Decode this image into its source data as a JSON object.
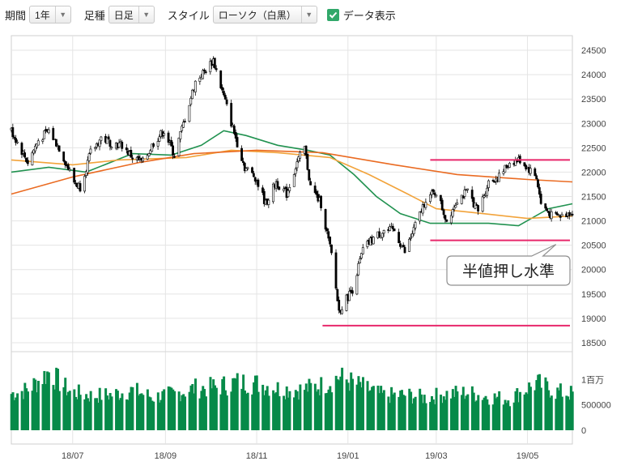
{
  "toolbar": {
    "period_label": "期間",
    "period_value": "1年",
    "type_label": "足種",
    "type_value": "日足",
    "style_label": "スタイル",
    "style_value": "ローソク（白黒）",
    "data_display_label": "データ表示",
    "data_display_checked": true
  },
  "chart_data": {
    "type": "line",
    "price_axis": {
      "ylim": [
        18350,
        24800
      ],
      "ticks": [
        18500,
        19000,
        19500,
        20000,
        20500,
        21000,
        21500,
        22000,
        22500,
        23000,
        23500,
        24000,
        24500
      ]
    },
    "volume_axis": {
      "ylim": [
        0,
        1550000
      ],
      "tick_labels": [
        "1百万",
        "500000",
        "0"
      ],
      "tick_values": [
        1000000,
        500000,
        0
      ]
    },
    "x_axis": {
      "range": [
        "2018-05-21",
        "2019-05-31"
      ],
      "tick_labels": [
        "18/07",
        "18/09",
        "18/11",
        "19/01",
        "19/03",
        "19/05"
      ],
      "tick_dates": [
        "2018-07-01",
        "2018-09-01",
        "2018-11-01",
        "2019-01-01",
        "2019-03-01",
        "2019-05-01"
      ]
    },
    "grid": true,
    "series": [
      {
        "name": "",
        "kind": "candlestick-close",
        "color": "#000000",
        "points": [
          [
            "2018-05-21",
            22850
          ],
          [
            "2018-06-01",
            22200
          ],
          [
            "2018-06-08",
            22650
          ],
          [
            "2018-06-15",
            22850
          ],
          [
            "2018-06-22",
            22500
          ],
          [
            "2018-07-02",
            21800
          ],
          [
            "2018-07-06",
            21700
          ],
          [
            "2018-07-13",
            22400
          ],
          [
            "2018-07-20",
            22700
          ],
          [
            "2018-07-27",
            22600
          ],
          [
            "2018-08-03",
            22550
          ],
          [
            "2018-08-10",
            22300
          ],
          [
            "2018-08-17",
            22200
          ],
          [
            "2018-08-24",
            22600
          ],
          [
            "2018-08-31",
            22850
          ],
          [
            "2018-09-07",
            22350
          ],
          [
            "2018-09-14",
            23100
          ],
          [
            "2018-09-21",
            23850
          ],
          [
            "2018-09-28",
            24100
          ],
          [
            "2018-10-03",
            24300
          ],
          [
            "2018-10-10",
            23550
          ],
          [
            "2018-10-17",
            22800
          ],
          [
            "2018-10-24",
            22100
          ],
          [
            "2018-10-31",
            21900
          ],
          [
            "2018-11-07",
            21350
          ],
          [
            "2018-11-14",
            21800
          ],
          [
            "2018-11-21",
            21550
          ],
          [
            "2018-11-28",
            22200
          ],
          [
            "2018-12-03",
            22500
          ],
          [
            "2018-12-07",
            21700
          ],
          [
            "2018-12-14",
            21350
          ],
          [
            "2018-12-21",
            20300
          ],
          [
            "2018-12-26",
            19150
          ],
          [
            "2019-01-04",
            19600
          ],
          [
            "2019-01-11",
            20400
          ],
          [
            "2019-01-18",
            20650
          ],
          [
            "2019-01-25",
            20800
          ],
          [
            "2019-02-01",
            20800
          ],
          [
            "2019-02-08",
            20350
          ],
          [
            "2019-02-15",
            20900
          ],
          [
            "2019-02-22",
            21450
          ],
          [
            "2019-03-01",
            21600
          ],
          [
            "2019-03-08",
            21000
          ],
          [
            "2019-03-15",
            21450
          ],
          [
            "2019-03-22",
            21600
          ],
          [
            "2019-03-29",
            21200
          ],
          [
            "2019-04-05",
            21800
          ],
          [
            "2019-04-12",
            21900
          ],
          [
            "2019-04-19",
            22200
          ],
          [
            "2019-04-26",
            22250
          ],
          [
            "2019-05-07",
            21900
          ],
          [
            "2019-05-10",
            21350
          ],
          [
            "2019-05-17",
            21100
          ],
          [
            "2019-05-24",
            21100
          ],
          [
            "2019-05-31",
            21200
          ]
        ]
      },
      {
        "name": "",
        "kind": "moving-average",
        "color": "#219250",
        "points": [
          [
            "2018-05-21",
            22000
          ],
          [
            "2018-06-15",
            22100
          ],
          [
            "2018-07-10",
            22000
          ],
          [
            "2018-08-10",
            22380
          ],
          [
            "2018-09-05",
            22350
          ],
          [
            "2018-09-25",
            22550
          ],
          [
            "2018-10-10",
            22850
          ],
          [
            "2018-10-25",
            22750
          ],
          [
            "2018-11-15",
            22550
          ],
          [
            "2018-12-05",
            22450
          ],
          [
            "2018-12-20",
            22350
          ],
          [
            "2019-01-05",
            21950
          ],
          [
            "2019-01-20",
            21500
          ],
          [
            "2019-02-05",
            21150
          ],
          [
            "2019-02-25",
            20950
          ],
          [
            "2019-03-15",
            20950
          ],
          [
            "2019-04-05",
            20950
          ],
          [
            "2019-04-25",
            20900
          ],
          [
            "2019-05-15",
            21250
          ],
          [
            "2019-05-31",
            21350
          ]
        ]
      },
      {
        "name": "",
        "kind": "moving-average",
        "color": "#f2a33a",
        "points": [
          [
            "2018-05-21",
            22250
          ],
          [
            "2018-07-01",
            22150
          ],
          [
            "2018-08-01",
            22250
          ],
          [
            "2018-09-15",
            22300
          ],
          [
            "2018-10-15",
            22450
          ],
          [
            "2018-11-15",
            22400
          ],
          [
            "2018-12-20",
            22300
          ],
          [
            "2019-01-15",
            21950
          ],
          [
            "2019-02-10",
            21550
          ],
          [
            "2019-03-01",
            21250
          ],
          [
            "2019-04-01",
            21150
          ],
          [
            "2019-05-01",
            21050
          ],
          [
            "2019-05-31",
            21100
          ]
        ]
      },
      {
        "name": "",
        "kind": "moving-average",
        "color": "#ea6b22",
        "points": [
          [
            "2018-05-21",
            21550
          ],
          [
            "2018-07-01",
            21900
          ],
          [
            "2018-08-15",
            22200
          ],
          [
            "2018-09-20",
            22380
          ],
          [
            "2018-11-01",
            22450
          ],
          [
            "2018-12-15",
            22400
          ],
          [
            "2019-02-01",
            22150
          ],
          [
            "2019-03-15",
            21950
          ],
          [
            "2019-05-01",
            21850
          ],
          [
            "2019-05-31",
            21800
          ]
        ]
      }
    ],
    "volume": [
      [
        "2018-05-21",
        720000
      ],
      [
        "2018-06-01",
        800000
      ],
      [
        "2018-06-15",
        1150000
      ],
      [
        "2018-06-29",
        760000
      ],
      [
        "2018-07-13",
        680000
      ],
      [
        "2018-07-27",
        700000
      ],
      [
        "2018-08-10",
        790000
      ],
      [
        "2018-08-24",
        650000
      ],
      [
        "2018-09-07",
        720000
      ],
      [
        "2018-09-21",
        830000
      ],
      [
        "2018-10-05",
        850000
      ],
      [
        "2018-10-19",
        950000
      ],
      [
        "2018-11-02",
        920000
      ],
      [
        "2018-11-16",
        820000
      ],
      [
        "2018-11-30",
        800000
      ],
      [
        "2018-12-14",
        880000
      ],
      [
        "2018-12-26",
        1050000
      ],
      [
        "2019-01-11",
        850000
      ],
      [
        "2019-01-25",
        680000
      ],
      [
        "2019-02-08",
        700000
      ],
      [
        "2019-02-22",
        640000
      ],
      [
        "2019-03-08",
        720000
      ],
      [
        "2019-03-22",
        740000
      ],
      [
        "2019-04-05",
        660000
      ],
      [
        "2019-04-19",
        620000
      ],
      [
        "2019-05-07",
        930000
      ],
      [
        "2019-05-20",
        760000
      ],
      [
        "2019-05-31",
        720000
      ]
    ],
    "volume_color": "#068a49",
    "reference_lines": [
      {
        "value": 22250,
        "from": "2019-02-25",
        "to": "2019-05-31",
        "color": "#e8286b"
      },
      {
        "value": 20600,
        "from": "2019-02-25",
        "to": "2019-05-31",
        "color": "#e8286b"
      },
      {
        "value": 18850,
        "from": "2018-12-15",
        "to": "2019-05-31",
        "color": "#e8286b"
      }
    ],
    "annotation": {
      "text": "半値押し水準",
      "pointer_date": "2019-05-20",
      "pointer_value": 20650
    }
  }
}
